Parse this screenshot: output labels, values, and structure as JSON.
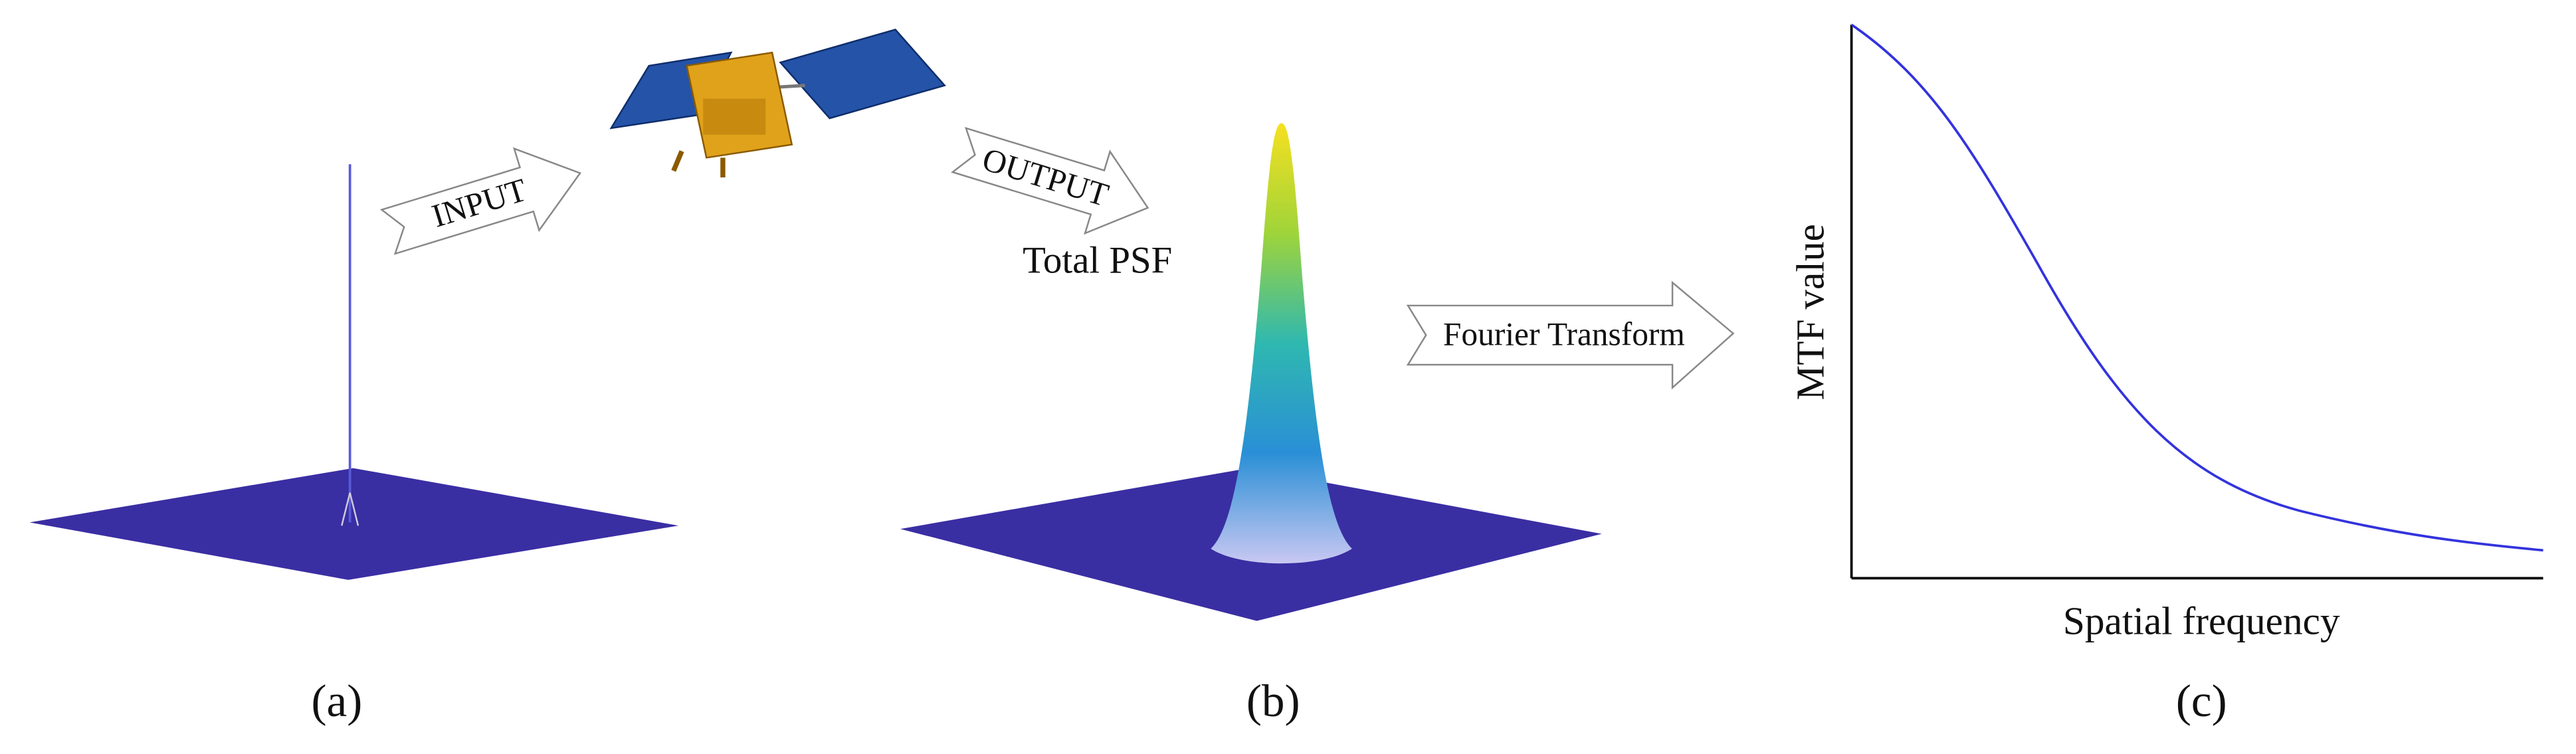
{
  "arrows": {
    "input": "INPUT",
    "output": "OUTPUT",
    "fourier": "Fourier Transform"
  },
  "total_psf": "Total PSF",
  "mtf_plot": {
    "y_label": "MTF value",
    "x_label": "Spatial frequency"
  },
  "panels": [
    "(a)",
    "(b)",
    "(c)"
  ]
}
